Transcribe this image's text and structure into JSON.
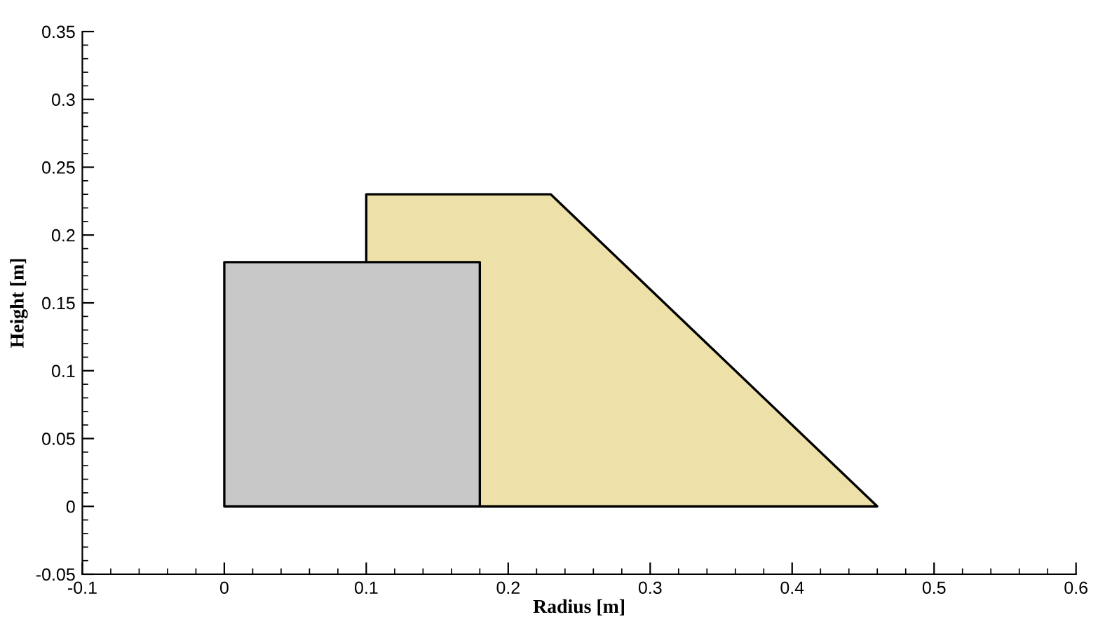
{
  "chart_data": {
    "type": "area",
    "xlabel": "Radius [m]",
    "ylabel": "Height [m]",
    "series": [
      {
        "color": "#ede0a8",
        "x": [
          0.1,
          0.23,
          0.46
        ],
        "values": [
          0.23,
          0.23,
          0
        ]
      },
      {
        "color": "#c8c8c8",
        "x": [
          0,
          0.18
        ],
        "values": [
          0.18,
          0.18
        ]
      }
    ],
    "xlim": [
      -0.1,
      0.6
    ],
    "ylim": [
      -0.05,
      0.35
    ],
    "xticks": [
      -0.1,
      0,
      0.1,
      0.2,
      0.3,
      0.4,
      0.5,
      0.6
    ],
    "yticks": [
      -0.05,
      0,
      0.05,
      0.1,
      0.15,
      0.2,
      0.25,
      0.3,
      0.35
    ],
    "grid": false,
    "legend": false
  }
}
